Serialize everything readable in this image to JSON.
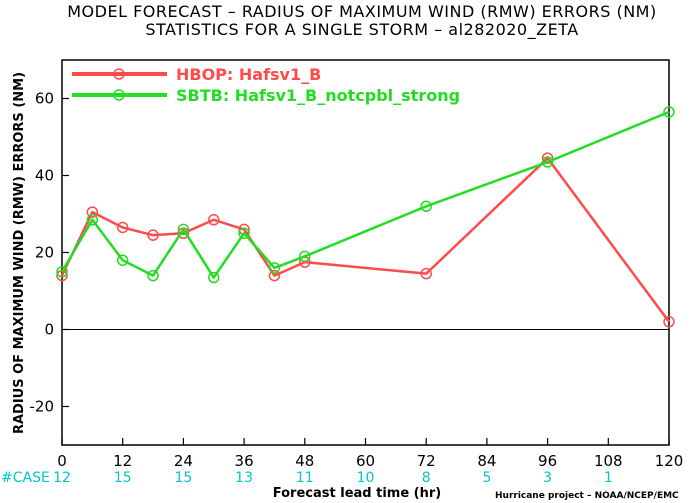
{
  "colors": {
    "hbop": "#ff4b4b",
    "sbtb": "#22dd22",
    "case": "#00c8c8"
  },
  "chart_data": {
    "type": "line",
    "title": "MODEL FORECAST – RADIUS OF MAXIMUM WIND (RMW) ERRORS (NM)",
    "subtitle": "STATISTICS FOR A SINGLE STORM – al282020_ZETA",
    "xlabel": "Forecast lead time (hr)",
    "ylabel": "RADIUS OF MAXIMUM WIND (RMW) ERRORS (NM)",
    "xlim": [
      0,
      120
    ],
    "ylim": [
      -30,
      70
    ],
    "x_ticks": [
      0,
      12,
      24,
      36,
      48,
      60,
      72,
      84,
      96,
      108,
      120
    ],
    "y_ticks": [
      -20,
      0,
      20,
      40,
      60
    ],
    "zero_line": true,
    "grid": false,
    "legend_position": "top-left",
    "series": [
      {
        "name": "HBOP: Hafsv1_B",
        "color": "#ff4b4b",
        "x": [
          0,
          6,
          12,
          18,
          24,
          30,
          36,
          42,
          48,
          72,
          96,
          120
        ],
        "y": [
          14,
          30.5,
          26.5,
          24.5,
          25,
          28.5,
          26,
          14,
          17.5,
          14.5,
          44.5,
          2
        ]
      },
      {
        "name": "SBTB: Hafsv1_B_notcpbl_strong",
        "color": "#22dd22",
        "x": [
          0,
          6,
          12,
          18,
          24,
          30,
          36,
          42,
          48,
          72,
          96,
          120
        ],
        "y": [
          15,
          28.5,
          18,
          14,
          26,
          13.5,
          25,
          16,
          19,
          32,
          43.5,
          56.5
        ]
      }
    ],
    "case_label": "#CASE",
    "case_x": [
      0,
      12,
      24,
      36,
      48,
      60,
      72,
      84,
      96,
      108
    ],
    "case_counts": [
      "12",
      "15",
      "15",
      "13",
      "11",
      "10",
      "8",
      "5",
      "3",
      "1"
    ]
  },
  "footer": {
    "credit": "Hurricane project – NOAA/NCEP/EMC"
  }
}
